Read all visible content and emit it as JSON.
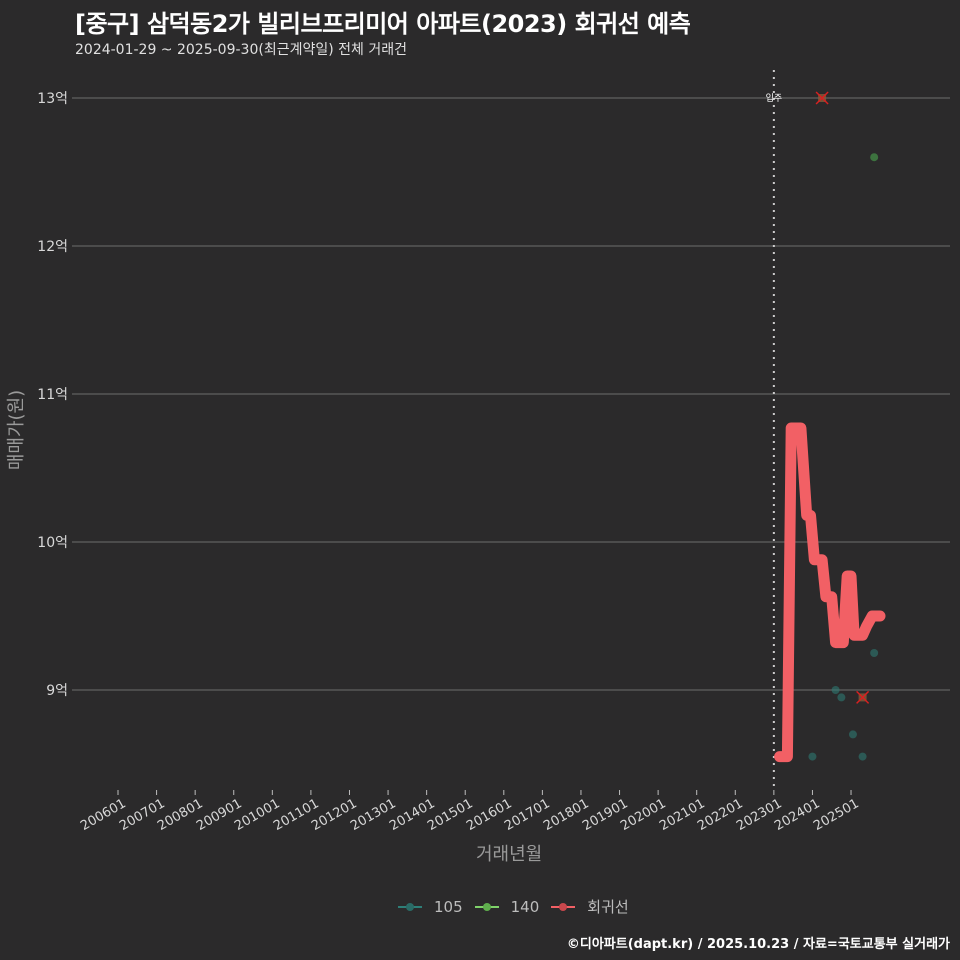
{
  "header": {
    "title": "[중구] 삼덕동2가 빌리브프리미어 아파트(2023) 회귀선 예측",
    "subtitle": "2024-01-29 ~ 2025-09-30(최근계약일) 전체 거래건"
  },
  "footer": {
    "credit": "©디아파트(dapt.kr) / 2025.10.23 / 자료=국토교통부 실거래가"
  },
  "colors": {
    "background": "#2b2a2b",
    "grid": "#6e6e6e",
    "series_105": "#2e7f78",
    "series_140": "#4caf50",
    "regression": "#f26065",
    "outlier_marker": "#d92020",
    "move_in_line": "#cccccc"
  },
  "chart_data": {
    "type": "scatter",
    "title": "[중구] 삼덕동2가 빌리브프리미어 아파트(2023) 회귀선 예측",
    "subtitle": "2024-01-29 ~ 2025-09-30(최근계약일) 전체 거래건",
    "xlabel": "거래년월",
    "ylabel": "매매가(원)",
    "x_tick_labels": [
      "200601",
      "200701",
      "200801",
      "200901",
      "201001",
      "201101",
      "201201",
      "201301",
      "201401",
      "201501",
      "201601",
      "201701",
      "201801",
      "201901",
      "202001",
      "202101",
      "202201",
      "202301",
      "202401",
      "202501"
    ],
    "y_tick_labels": [
      "9억",
      "10억",
      "11억",
      "12억",
      "13억"
    ],
    "y_tick_values": [
      9,
      10,
      11,
      12,
      13
    ],
    "ylim": [
      8.25,
      13.2
    ],
    "grid": true,
    "legend_position": "bottom",
    "legend": [
      "105",
      "140",
      "회귀선"
    ],
    "annotations": [
      {
        "label": "입주",
        "x": "2023.0",
        "type": "vertical-dotted-line"
      }
    ],
    "series": [
      {
        "name": "105",
        "type": "scatter",
        "points": [
          {
            "x": 2024.0,
            "y": 8.55
          },
          {
            "x": 2024.6,
            "y": 9.0
          },
          {
            "x": 2024.75,
            "y": 8.95
          },
          {
            "x": 2025.05,
            "y": 8.7
          },
          {
            "x": 2025.3,
            "y": 8.55
          },
          {
            "x": 2025.6,
            "y": 9.25
          }
        ]
      },
      {
        "name": "140",
        "type": "scatter",
        "points": [
          {
            "x": 2025.6,
            "y": 12.6
          }
        ]
      },
      {
        "name": "회귀선",
        "type": "line",
        "points": [
          {
            "x": 2023.15,
            "y": 8.55
          },
          {
            "x": 2023.35,
            "y": 8.55
          },
          {
            "x": 2023.45,
            "y": 10.77
          },
          {
            "x": 2023.7,
            "y": 10.77
          },
          {
            "x": 2023.85,
            "y": 10.18
          },
          {
            "x": 2023.95,
            "y": 10.18
          },
          {
            "x": 2024.05,
            "y": 9.88
          },
          {
            "x": 2024.25,
            "y": 9.88
          },
          {
            "x": 2024.35,
            "y": 9.63
          },
          {
            "x": 2024.5,
            "y": 9.63
          },
          {
            "x": 2024.6,
            "y": 9.32
          },
          {
            "x": 2024.8,
            "y": 9.32
          },
          {
            "x": 2024.9,
            "y": 9.77
          },
          {
            "x": 2025.0,
            "y": 9.77
          },
          {
            "x": 2025.08,
            "y": 9.37
          },
          {
            "x": 2025.3,
            "y": 9.37
          },
          {
            "x": 2025.4,
            "y": 9.43
          },
          {
            "x": 2025.55,
            "y": 9.5
          },
          {
            "x": 2025.75,
            "y": 9.5
          }
        ]
      }
    ],
    "outliers": [
      {
        "x": 2024.25,
        "y": 13.0
      },
      {
        "x": 2025.3,
        "y": 8.95
      }
    ]
  }
}
